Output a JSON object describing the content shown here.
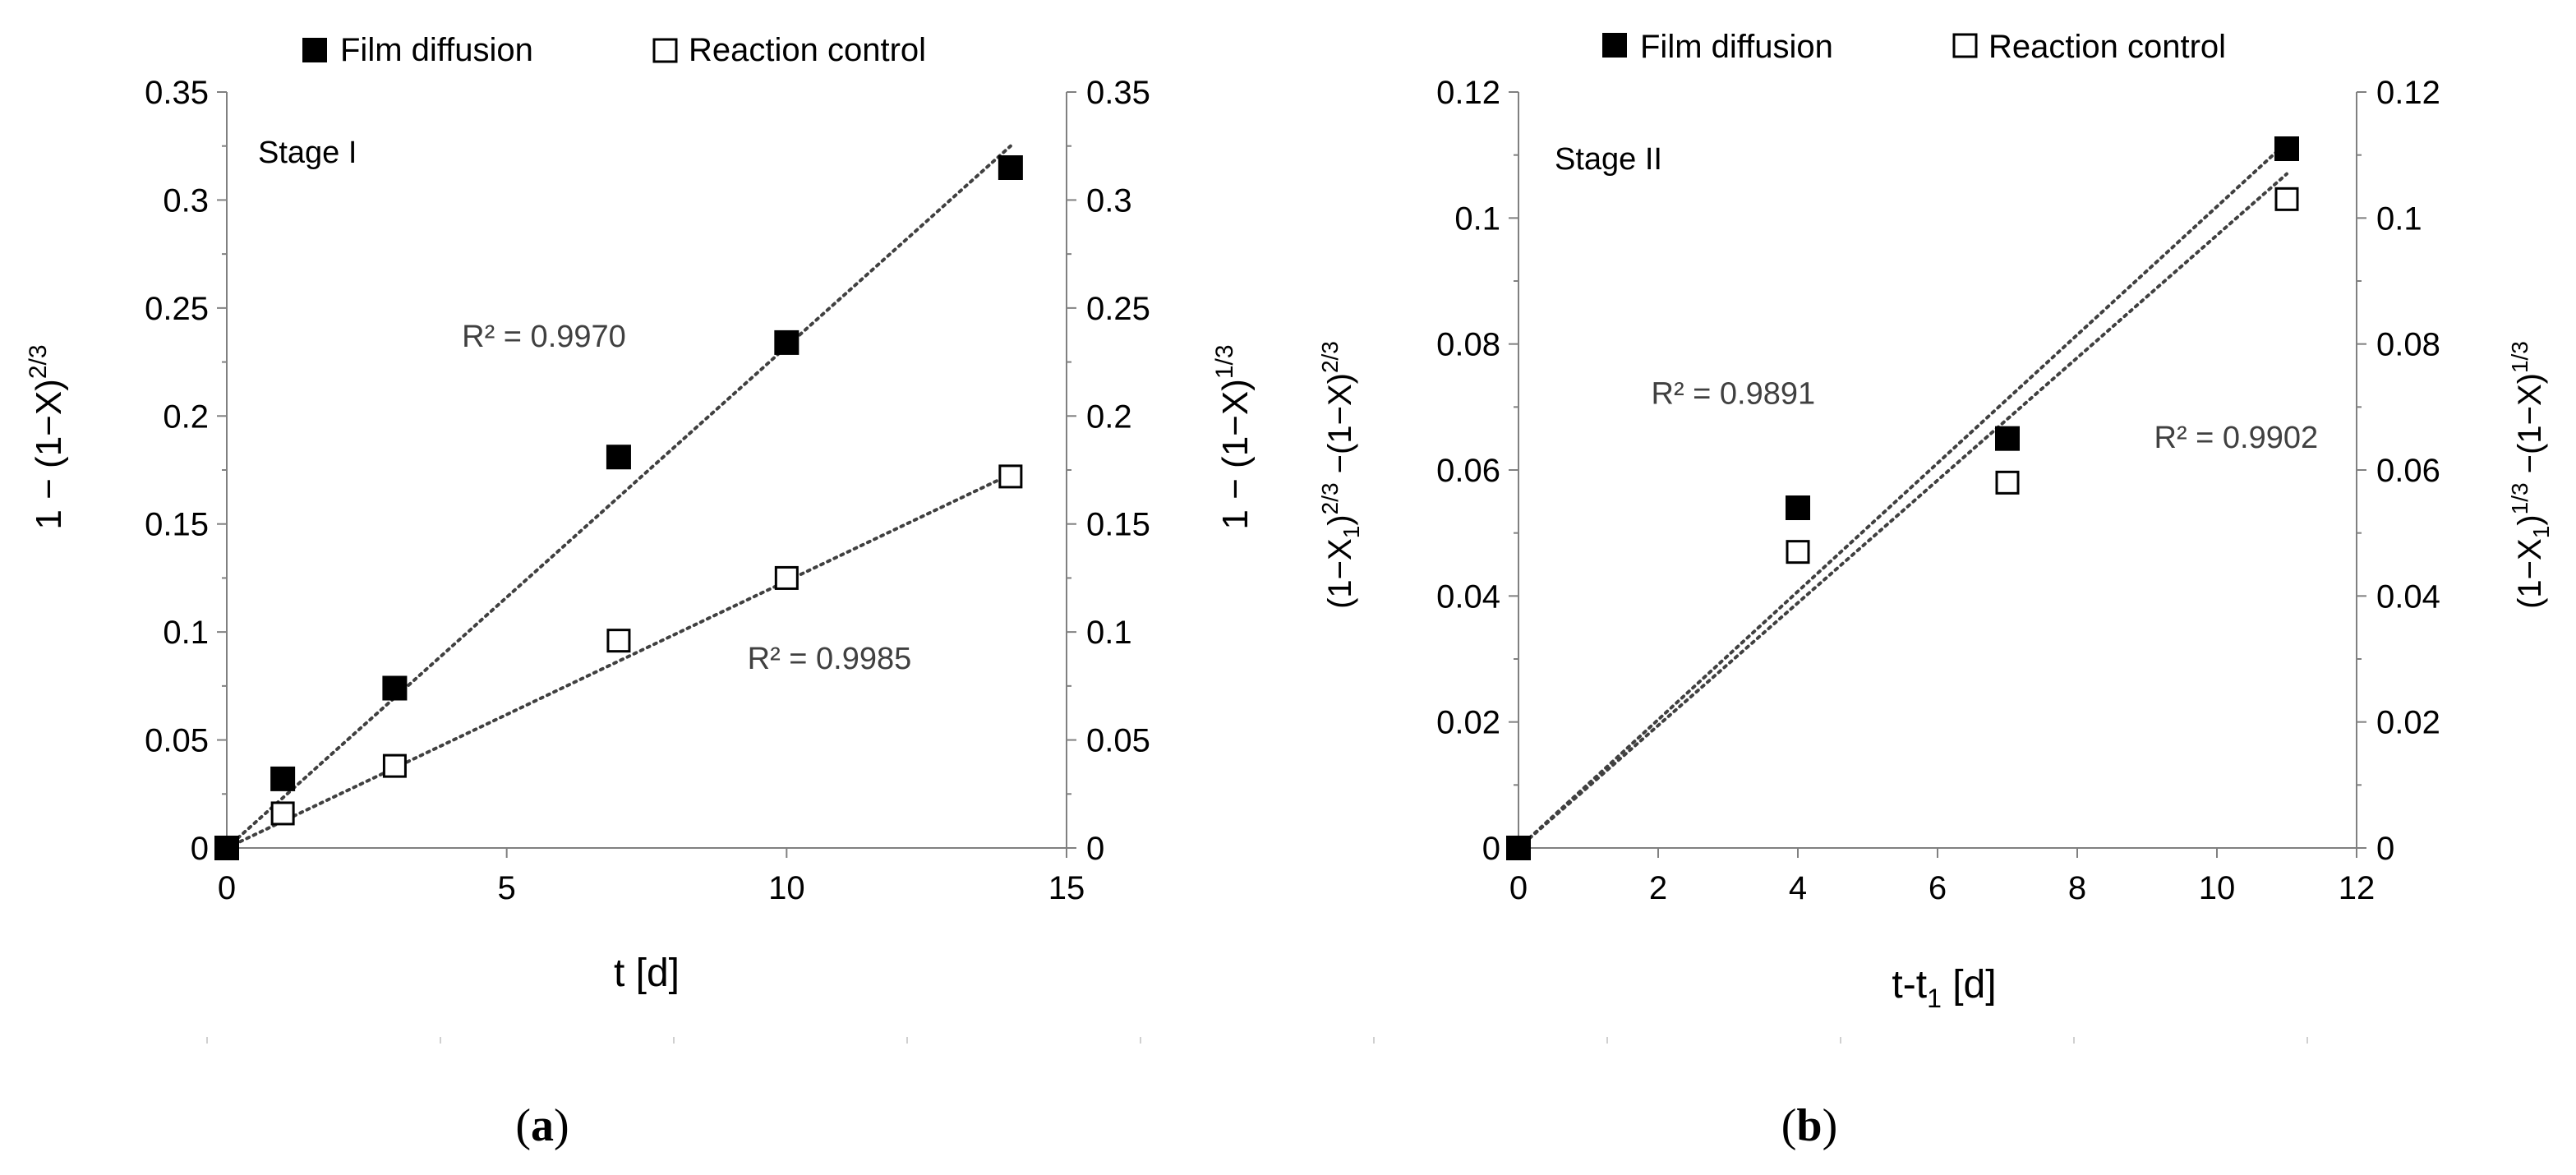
{
  "legend": {
    "film_label": "Film diffusion",
    "reaction_label": "Reaction control"
  },
  "panel_labels": {
    "a": "a",
    "b": "b"
  },
  "chart_data": [
    {
      "id": "a",
      "type": "scatter",
      "annotation": "Stage I",
      "xlabel": "t [d]",
      "ylabel_left": "1 − (1−X)^{2/3}",
      "ylabel_right": "1 − (1−X)^{1/3}",
      "xlim": [
        0,
        15
      ],
      "ylim": [
        0,
        0.35
      ],
      "xticks": [
        0,
        5,
        10,
        15
      ],
      "xtick_labels": [
        "0",
        "5",
        "10",
        "15"
      ],
      "yticks": [
        0,
        0.05,
        0.1,
        0.15,
        0.2,
        0.25,
        0.3,
        0.35
      ],
      "ytick_labels": [
        "0",
        "0.05",
        "0.1",
        "0.15",
        "0.2",
        "0.25",
        "0.3",
        "0.35"
      ],
      "series": [
        {
          "name": "Film diffusion",
          "marker": "filled-square",
          "x": [
            0,
            1,
            3,
            7,
            10,
            14
          ],
          "y": [
            0,
            0.032,
            0.074,
            0.181,
            0.234,
            0.315
          ],
          "trend_end": [
            14,
            0.325
          ],
          "r2_label": "R² = 0.9970",
          "r2_anchor": [
            4.2,
            0.232
          ]
        },
        {
          "name": "Reaction control",
          "marker": "open-square",
          "x": [
            0,
            1,
            3,
            7,
            10,
            14
          ],
          "y": [
            0,
            0.016,
            0.038,
            0.096,
            0.125,
            0.172
          ],
          "trend_end": [
            14,
            0.173
          ],
          "r2_label": "R² = 0.9985",
          "r2_anchor": [
            9.3,
            0.083
          ]
        }
      ]
    },
    {
      "id": "b",
      "type": "scatter",
      "annotation": "Stage II",
      "xlabel": "t-t₁ [d]",
      "ylabel_left": "(1−X₁)^{2/3} −(1−X)^{2/3}",
      "ylabel_right": "(1−X₁)^{1/3} −(1−X)^{1/3}",
      "xlim": [
        0,
        12
      ],
      "ylim": [
        0,
        0.12
      ],
      "xticks": [
        0,
        2,
        4,
        6,
        8,
        10,
        12
      ],
      "xtick_labels": [
        "0",
        "2",
        "4",
        "6",
        "8",
        "10",
        "12"
      ],
      "yticks": [
        0,
        0.02,
        0.04,
        0.06,
        0.08,
        0.1,
        0.12
      ],
      "ytick_labels": [
        "0",
        "0.02",
        "0.04",
        "0.06",
        "0.08",
        "0.1",
        "0.12"
      ],
      "series": [
        {
          "name": "Film diffusion",
          "marker": "filled-square",
          "x": [
            0,
            4,
            7,
            11
          ],
          "y": [
            0,
            0.054,
            0.065,
            0.111
          ],
          "trend_end": [
            11,
            0.112
          ],
          "r2_label": "R² = 0.9891",
          "r2_anchor": [
            1.9,
            0.0705
          ]
        },
        {
          "name": "Reaction control",
          "marker": "open-square",
          "x": [
            0,
            4,
            7,
            11
          ],
          "y": [
            0,
            0.047,
            0.058,
            0.103
          ],
          "trend_end": [
            11,
            0.107
          ],
          "r2_label": "R² = 0.9902",
          "r2_anchor": [
            9.1,
            0.0635
          ]
        }
      ]
    }
  ]
}
